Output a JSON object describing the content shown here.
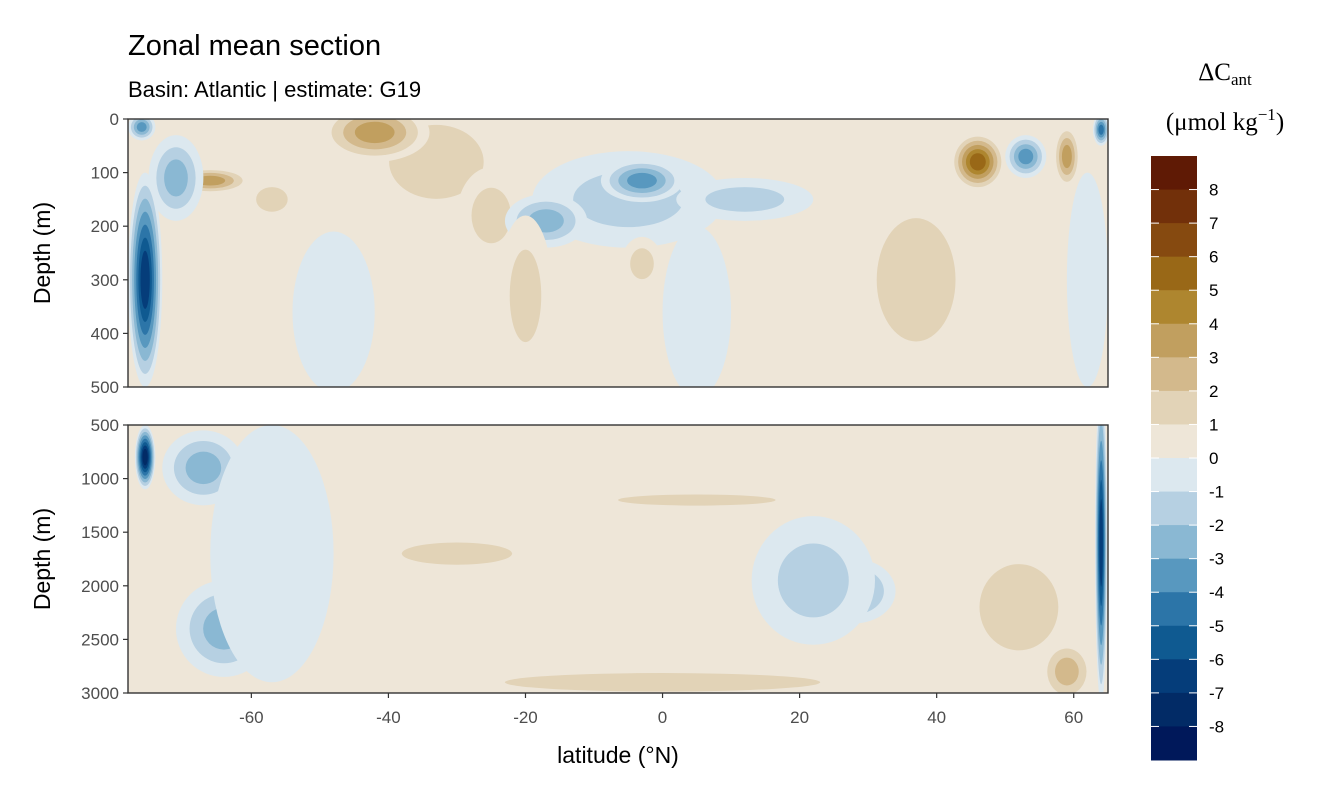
{
  "chart_data": {
    "type": "heatmap",
    "title": "Zonal mean section",
    "subtitle": "Basin: Atlantic | estimate: G19",
    "xlabel": "latitude (°N)",
    "ylabel": "Depth (m)",
    "xlim": [
      -78,
      65
    ],
    "x_ticks": [
      "-60",
      "-40",
      "-20",
      "0",
      "20",
      "40",
      "60"
    ],
    "x_tick_values": [
      -60,
      -40,
      -20,
      0,
      20,
      40,
      60
    ],
    "panels": [
      {
        "name": "upper",
        "ylim": [
          0,
          500
        ],
        "y_ticks": [
          "0",
          "100",
          "200",
          "300",
          "400",
          "500"
        ],
        "y_tick_values": [
          0,
          100,
          200,
          300,
          400,
          500
        ]
      },
      {
        "name": "lower",
        "ylim": [
          500,
          3000
        ],
        "y_ticks": [
          "500",
          "1000",
          "1500",
          "2000",
          "2500",
          "3000"
        ],
        "y_tick_values": [
          500,
          1000,
          1500,
          2000,
          2500,
          3000
        ]
      }
    ],
    "legend": {
      "title_main": "ΔC",
      "title_sub": "ant",
      "unit_text": "(μmol kg",
      "unit_sup": "−1",
      "unit_close": ")",
      "placement": "right",
      "labels": [
        "8",
        "7",
        "6",
        "5",
        "4",
        "3",
        "2",
        "1",
        "0",
        "-1",
        "-2",
        "-3",
        "-4",
        "-5",
        "-6",
        "-7",
        "-8"
      ],
      "colors": [
        "#5f1a05",
        "#72300a",
        "#864a10",
        "#996817",
        "#ae862f",
        "#c19f5f",
        "#d3b98c",
        "#e2d3b7",
        "#eee6d8",
        "#dce8ef",
        "#b6d0e2",
        "#8ab8d3",
        "#5898bf",
        "#2c75a8",
        "#0f5a91",
        "#053d7a",
        "#022b66",
        "#00185a"
      ]
    },
    "features": [
      {
        "panel": "upper",
        "lat": -33,
        "depth": 80,
        "dlat": 12,
        "ddepth": 120,
        "value": 1.6
      },
      {
        "panel": "upper",
        "lat": -42,
        "depth": 25,
        "dlat": 8,
        "ddepth": 55,
        "value": 3.3
      },
      {
        "panel": "upper",
        "lat": -25,
        "depth": 180,
        "dlat": 5,
        "ddepth": 90,
        "value": 1.5
      },
      {
        "panel": "upper",
        "lat": -57,
        "depth": 150,
        "dlat": 4,
        "ddepth": 40,
        "value": 1.5
      },
      {
        "panel": "upper",
        "lat": -66,
        "depth": 115,
        "dlat": 6,
        "ddepth": 25,
        "value": 3.2
      },
      {
        "panel": "upper",
        "lat": -71,
        "depth": 110,
        "dlat": 4,
        "ddepth": 80,
        "value": -2.5
      },
      {
        "panel": "upper",
        "lat": -75.5,
        "depth": 300,
        "dlat": 2.5,
        "ddepth": 200,
        "value": -6.5
      },
      {
        "panel": "upper",
        "lat": -76,
        "depth": 15,
        "dlat": 2,
        "ddepth": 25,
        "value": -3.5
      },
      {
        "panel": "upper",
        "lat": -5,
        "depth": 150,
        "dlat": 14,
        "ddepth": 90,
        "value": -1.6
      },
      {
        "panel": "upper",
        "lat": -3,
        "depth": 115,
        "dlat": 6,
        "ddepth": 40,
        "value": -3.6
      },
      {
        "panel": "upper",
        "lat": 12,
        "depth": 150,
        "dlat": 10,
        "ddepth": 40,
        "value": -1.8
      },
      {
        "panel": "upper",
        "lat": -17,
        "depth": 190,
        "dlat": 6,
        "ddepth": 50,
        "value": -2.4
      },
      {
        "panel": "upper",
        "lat": -3,
        "depth": 270,
        "dlat": 3,
        "ddepth": 50,
        "value": 1.4
      },
      {
        "panel": "upper",
        "lat": 5,
        "depth": 360,
        "dlat": 5,
        "ddepth": 160,
        "value": -0.5
      },
      {
        "panel": "upper",
        "lat": -20,
        "depth": 330,
        "dlat": 4,
        "ddepth": 150,
        "value": 1.2
      },
      {
        "panel": "upper",
        "lat": 46,
        "depth": 80,
        "dlat": 4,
        "ddepth": 55,
        "value": 5.8
      },
      {
        "panel": "upper",
        "lat": 53,
        "depth": 70,
        "dlat": 3,
        "ddepth": 40,
        "value": -3.4
      },
      {
        "panel": "upper",
        "lat": 59,
        "depth": 70,
        "dlat": 2,
        "ddepth": 60,
        "value": 3.2
      },
      {
        "panel": "upper",
        "lat": 62,
        "depth": 300,
        "dlat": 3,
        "ddepth": 200,
        "value": -0.8
      },
      {
        "panel": "upper",
        "lat": 64,
        "depth": 20,
        "dlat": 1.2,
        "ddepth": 30,
        "value": -5.0
      },
      {
        "panel": "upper",
        "lat": 37,
        "depth": 300,
        "dlat": 10,
        "ddepth": 200,
        "value": 1.3
      },
      {
        "panel": "upper",
        "lat": -48,
        "depth": 360,
        "dlat": 6,
        "ddepth": 150,
        "value": -0.6
      },
      {
        "panel": "lower",
        "lat": -67,
        "depth": 900,
        "dlat": 6,
        "ddepth": 350,
        "value": -2.6
      },
      {
        "panel": "lower",
        "lat": -75.5,
        "depth": 800,
        "dlat": 1.5,
        "ddepth": 300,
        "value": -7.5
      },
      {
        "panel": "lower",
        "lat": -64,
        "depth": 2400,
        "dlat": 7,
        "ddepth": 450,
        "value": -2.5
      },
      {
        "panel": "lower",
        "lat": 28,
        "depth": 2050,
        "dlat": 6,
        "ddepth": 300,
        "value": -2.3
      },
      {
        "panel": "lower",
        "lat": 22,
        "depth": 1950,
        "dlat": 9,
        "ddepth": 600,
        "value": -1.3
      },
      {
        "panel": "lower",
        "lat": 5,
        "depth": 1200,
        "dlat": 20,
        "ddepth": 90,
        "value": 1.3
      },
      {
        "panel": "lower",
        "lat": -30,
        "depth": 1700,
        "dlat": 14,
        "ddepth": 180,
        "value": 1.5
      },
      {
        "panel": "lower",
        "lat": 52,
        "depth": 2200,
        "dlat": 10,
        "ddepth": 700,
        "value": 1.5
      },
      {
        "panel": "lower",
        "lat": 59,
        "depth": 2800,
        "dlat": 4,
        "ddepth": 300,
        "value": 2.4
      },
      {
        "panel": "lower",
        "lat": 0,
        "depth": 2900,
        "dlat": 40,
        "ddepth": 150,
        "value": 1.3
      },
      {
        "panel": "lower",
        "lat": 64,
        "depth": 1600,
        "dlat": 0.9,
        "ddepth": 1500,
        "value": -7.0
      },
      {
        "panel": "lower",
        "lat": -57,
        "depth": 1700,
        "dlat": 9,
        "ddepth": 1200,
        "value": -0.8
      }
    ]
  }
}
